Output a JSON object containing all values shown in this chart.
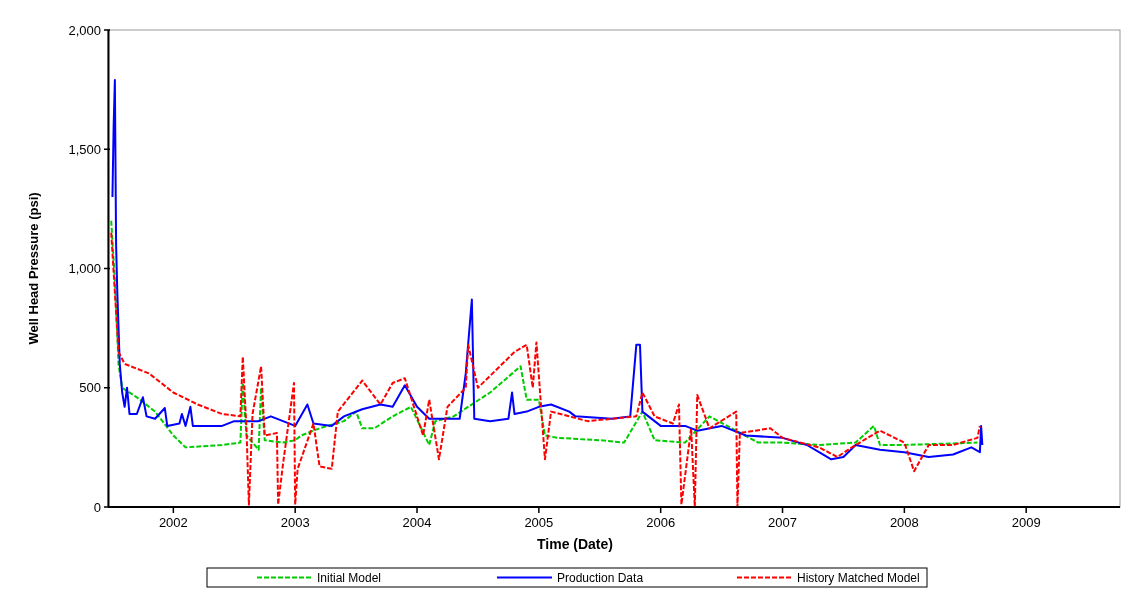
{
  "chart_data": {
    "type": "line",
    "xlabel": "Time (Date)",
    "ylabel": "Well Head Pressure (psi)",
    "xlim": [
      2001.48,
      2009.77
    ],
    "xticks": [
      2002,
      2003,
      2004,
      2005,
      2006,
      2007,
      2008,
      2009
    ],
    "ylim": [
      0,
      2000
    ],
    "yticks": [
      0,
      500,
      {
        "value": 1000,
        "label": "1,000"
      },
      {
        "value": 1500,
        "label": "1,500"
      },
      {
        "value": 2000,
        "label": "2,000"
      }
    ],
    "grid": false,
    "legend": "bottom",
    "marker": "none",
    "series": [
      {
        "name": "Initial Model",
        "color": "#00cc00",
        "line_style": "dashed",
        "x": [
          2001.49,
          2001.52,
          2001.55,
          2001.58,
          2001.7,
          2001.85,
          2002,
          2002.1,
          2002.4,
          2002.55,
          2002.57,
          2002.6,
          2002.7,
          2002.72,
          2002.75,
          2002.9,
          2003,
          2003.05,
          2003.2,
          2003.4,
          2003.5,
          2003.55,
          2003.65,
          2003.8,
          2003.95,
          2004.1,
          2004.15,
          2004.3,
          2004.6,
          2004.85,
          2004.9,
          2005,
          2005.05,
          2005.15,
          2005.5,
          2005.7,
          2005.85,
          2005.95,
          2006.2,
          2006.4,
          2006.8,
          2007,
          2007.3,
          2007.6,
          2007.75,
          2007.8,
          2008,
          2008.6
        ],
        "values": [
          1200,
          950,
          600,
          500,
          460,
          400,
          300,
          250,
          260,
          270,
          520,
          300,
          240,
          500,
          280,
          270,
          280,
          300,
          330,
          360,
          400,
          330,
          330,
          380,
          420,
          260,
          360,
          380,
          480,
          590,
          450,
          450,
          300,
          290,
          280,
          270,
          400,
          280,
          270,
          380,
          270,
          270,
          260,
          270,
          340,
          260,
          260,
          270
        ]
      },
      {
        "name": "Production Data",
        "color": "#0000ff",
        "line_style": "solid",
        "x": [
          2001.5,
          2001.51,
          2001.52,
          2001.53,
          2001.54,
          2001.56,
          2001.58,
          2001.6,
          2001.62,
          2001.64,
          2001.7,
          2001.75,
          2001.78,
          2001.85,
          2001.93,
          2001.95,
          2002.05,
          2002.07,
          2002.1,
          2002.14,
          2002.16,
          2002.4,
          2002.5,
          2002.7,
          2002.8,
          2003,
          2003.1,
          2003.15,
          2003.3,
          2003.4,
          2003.55,
          2003.7,
          2003.8,
          2003.9,
          2004,
          2004.1,
          2004.35,
          2004.4,
          2004.45,
          2004.47,
          2004.6,
          2004.75,
          2004.78,
          2004.8,
          2004.9,
          2005,
          2005.1,
          2005.25,
          2005.3,
          2005.6,
          2005.75,
          2005.8,
          2005.83,
          2005.85,
          2006,
          2006.2,
          2006.3,
          2006.5,
          2006.7,
          2007,
          2007.2,
          2007.3,
          2007.4,
          2007.5,
          2007.6,
          2007.8,
          2008,
          2008.2,
          2008.4,
          2008.55,
          2008.62,
          2008.63,
          2008.64
        ],
        "values": [
          1300,
          1600,
          1790,
          1100,
          900,
          600,
          480,
          420,
          500,
          390,
          390,
          460,
          380,
          370,
          415,
          340,
          350,
          390,
          340,
          420,
          340,
          340,
          360,
          360,
          380,
          340,
          430,
          350,
          340,
          380,
          410,
          430,
          420,
          510,
          420,
          370,
          370,
          560,
          870,
          370,
          360,
          370,
          480,
          390,
          400,
          420,
          430,
          400,
          380,
          370,
          380,
          680,
          680,
          400,
          340,
          340,
          320,
          340,
          300,
          290,
          260,
          230,
          200,
          210,
          260,
          240,
          230,
          210,
          220,
          250,
          230,
          340,
          260
        ]
      },
      {
        "name": "History Matched Model",
        "color": "#ff0000",
        "line_style": "dashed",
        "x": [
          2001.49,
          2001.52,
          2001.55,
          2001.6,
          2001.8,
          2002,
          2002.2,
          2002.4,
          2002.55,
          2002.57,
          2002.6,
          2002.62,
          2002.65,
          2002.72,
          2002.75,
          2002.85,
          2002.86,
          2002.9,
          2002.99,
          2003,
          2003.02,
          2003.15,
          2003.2,
          2003.3,
          2003.35,
          2003.55,
          2003.7,
          2003.8,
          2003.9,
          2004.05,
          2004.1,
          2004.18,
          2004.25,
          2004.4,
          2004.42,
          2004.5,
          2004.8,
          2004.9,
          2004.95,
          2004.98,
          2005.05,
          2005.1,
          2005.4,
          2005.8,
          2005.85,
          2005.95,
          2006.1,
          2006.15,
          2006.17,
          2006.25,
          2006.28,
          2006.3,
          2006.4,
          2006.62,
          2006.63,
          2006.65,
          2006.9,
          2007,
          2007.3,
          2007.45,
          2007.6,
          2007.8,
          2008,
          2008.08,
          2008.2,
          2008.4,
          2008.6,
          2008.62
        ],
        "values": [
          1150,
          900,
          650,
          600,
          560,
          480,
          430,
          390,
          380,
          630,
          330,
          10,
          390,
          590,
          300,
          310,
          10,
          180,
          520,
          10,
          160,
          350,
          170,
          160,
          400,
          530,
          430,
          520,
          540,
          300,
          450,
          200,
          420,
          500,
          680,
          500,
          650,
          680,
          500,
          690,
          200,
          400,
          360,
          380,
          480,
          380,
          350,
          430,
          10,
          330,
          0,
          470,
          330,
          400,
          0,
          310,
          330,
          290,
          250,
          210,
          260,
          320,
          270,
          150,
          260,
          260,
          290,
          340
        ]
      }
    ]
  }
}
